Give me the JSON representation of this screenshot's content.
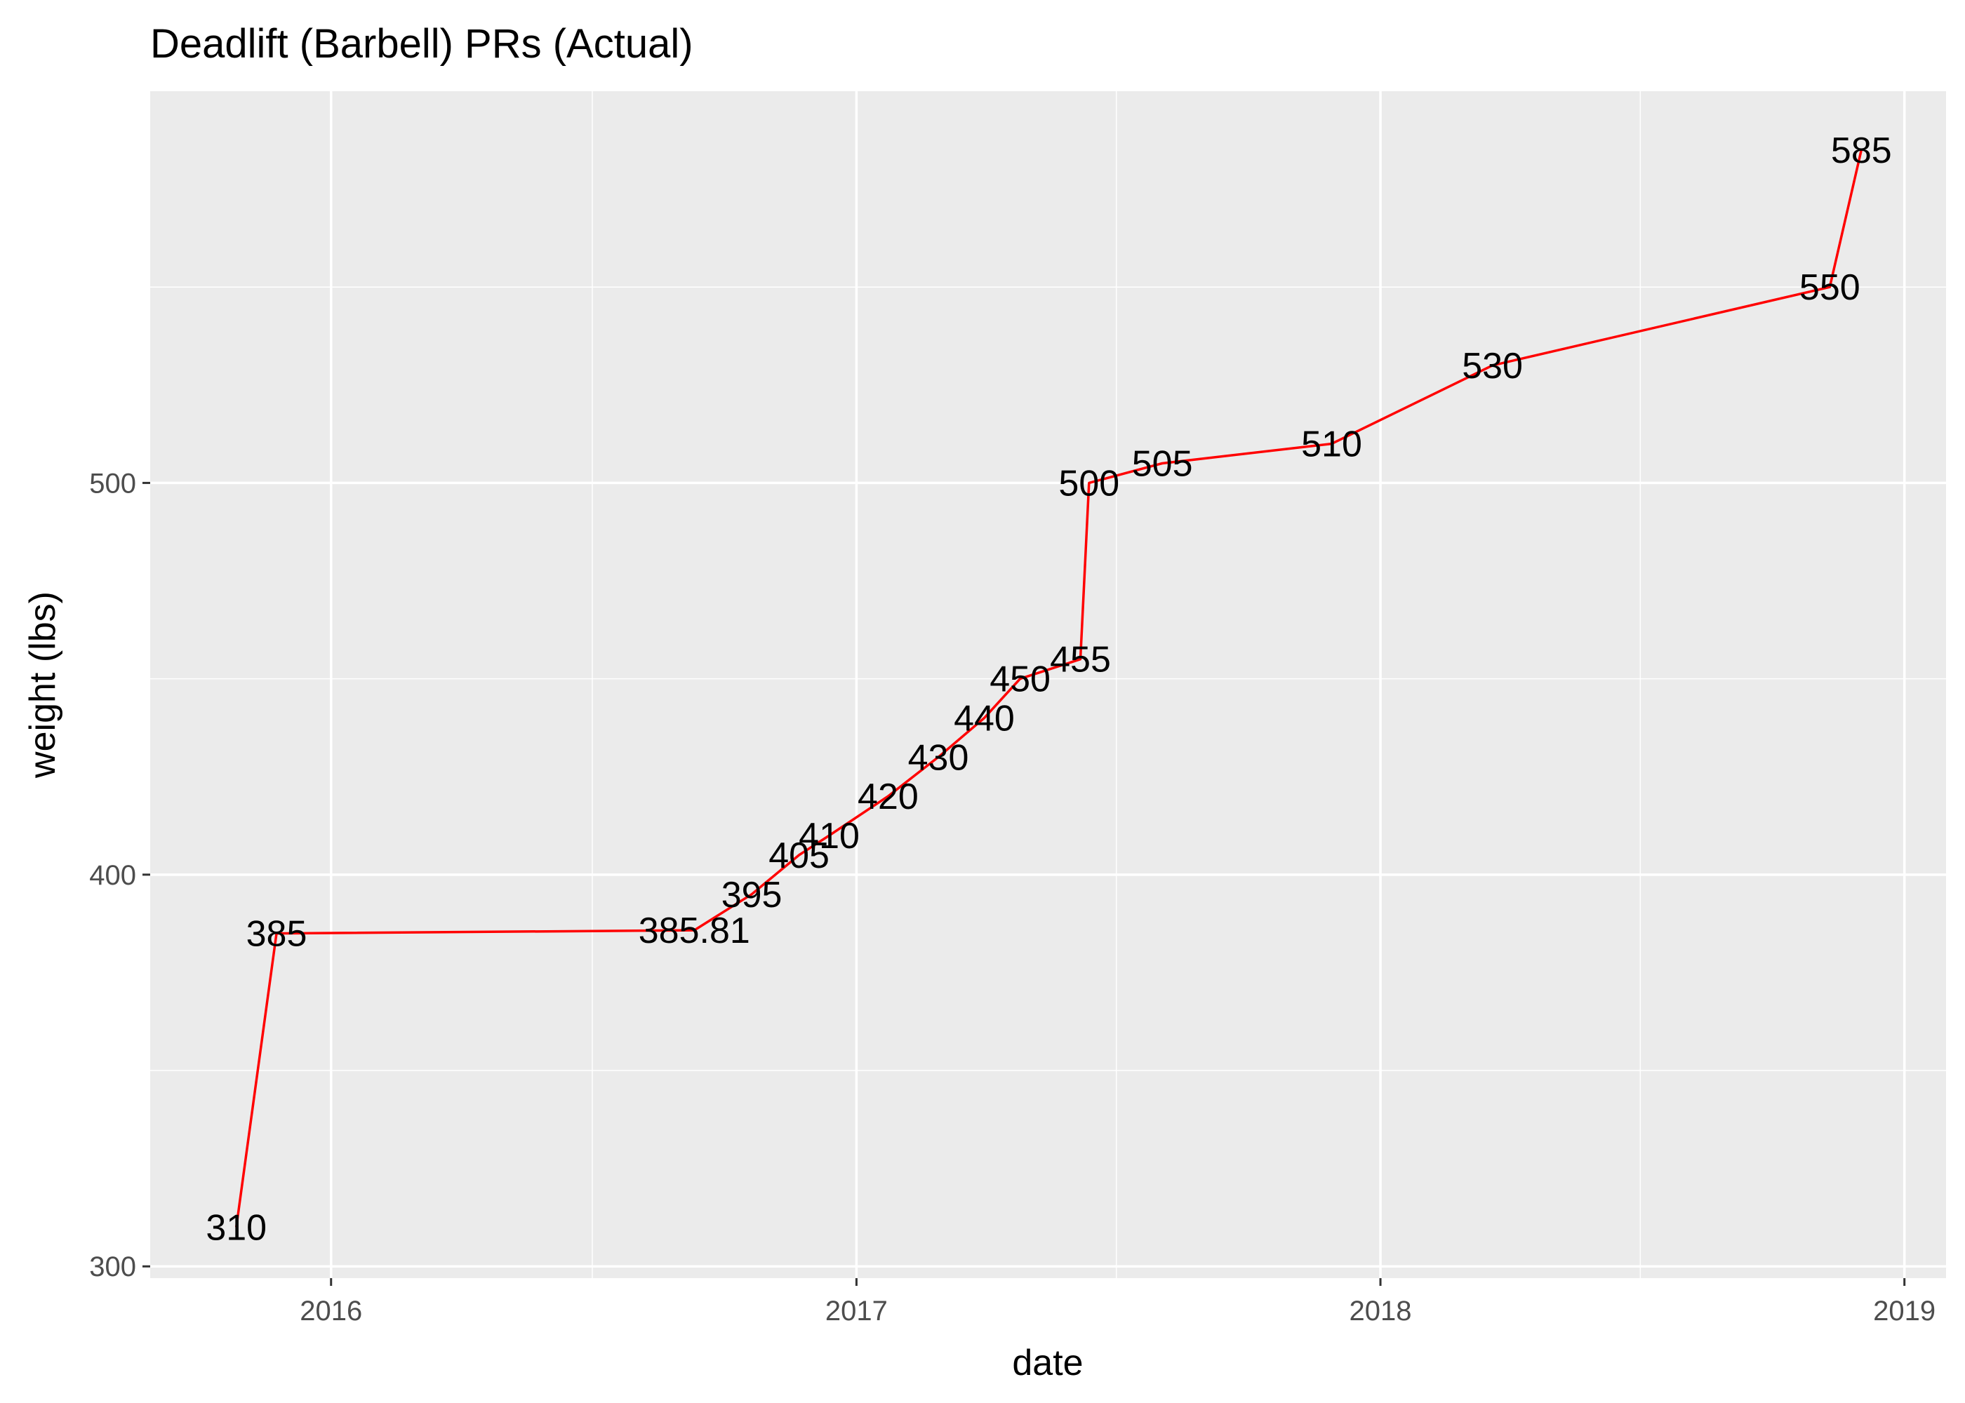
{
  "chart_data": {
    "type": "line",
    "title": "Deadlift (Barbell) PRs (Actual)",
    "xlabel": "date",
    "ylabel": "weight (lbs)",
    "x_axis_type": "date",
    "xlim": [
      "2015-08-28",
      "2019-01-30"
    ],
    "ylim": [
      297,
      600
    ],
    "x_ticks": [
      {
        "date": "2016-01-01",
        "label": "2016"
      },
      {
        "date": "2017-01-01",
        "label": "2017"
      },
      {
        "date": "2018-01-01",
        "label": "2018"
      },
      {
        "date": "2019-01-01",
        "label": "2019"
      }
    ],
    "x_minor_ticks": [
      "2016-07-01",
      "2017-07-01",
      "2018-07-01"
    ],
    "y_ticks": [
      300,
      400,
      500
    ],
    "y_minor_ticks": [
      350,
      450,
      550
    ],
    "grid": true,
    "background": "#ebebeb",
    "line_color": "#ff0000",
    "series": [
      {
        "points": [
          {
            "date": "2015-10-27",
            "weight": 310,
            "label": "310"
          },
          {
            "date": "2015-11-24",
            "weight": 385,
            "label": "385"
          },
          {
            "date": "2016-09-10",
            "weight": 385.81,
            "label": "385.81"
          },
          {
            "date": "2016-10-20",
            "weight": 395,
            "label": "395"
          },
          {
            "date": "2016-11-22",
            "weight": 405,
            "label": "405"
          },
          {
            "date": "2016-12-13",
            "weight": 410,
            "label": "410"
          },
          {
            "date": "2017-01-23",
            "weight": 420,
            "label": "420"
          },
          {
            "date": "2017-02-27",
            "weight": 430,
            "label": "430"
          },
          {
            "date": "2017-03-31",
            "weight": 440,
            "label": "440"
          },
          {
            "date": "2017-04-25",
            "weight": 450,
            "label": "450"
          },
          {
            "date": "2017-06-06",
            "weight": 455,
            "label": "455"
          },
          {
            "date": "2017-06-12",
            "weight": 500,
            "label": "500"
          },
          {
            "date": "2017-08-02",
            "weight": 505,
            "label": "505"
          },
          {
            "date": "2017-11-28",
            "weight": 510,
            "label": "510"
          },
          {
            "date": "2018-03-20",
            "weight": 530,
            "label": "530"
          },
          {
            "date": "2018-11-10",
            "weight": 550,
            "label": "550"
          },
          {
            "date": "2018-12-02",
            "weight": 585,
            "label": "585"
          }
        ]
      }
    ]
  }
}
